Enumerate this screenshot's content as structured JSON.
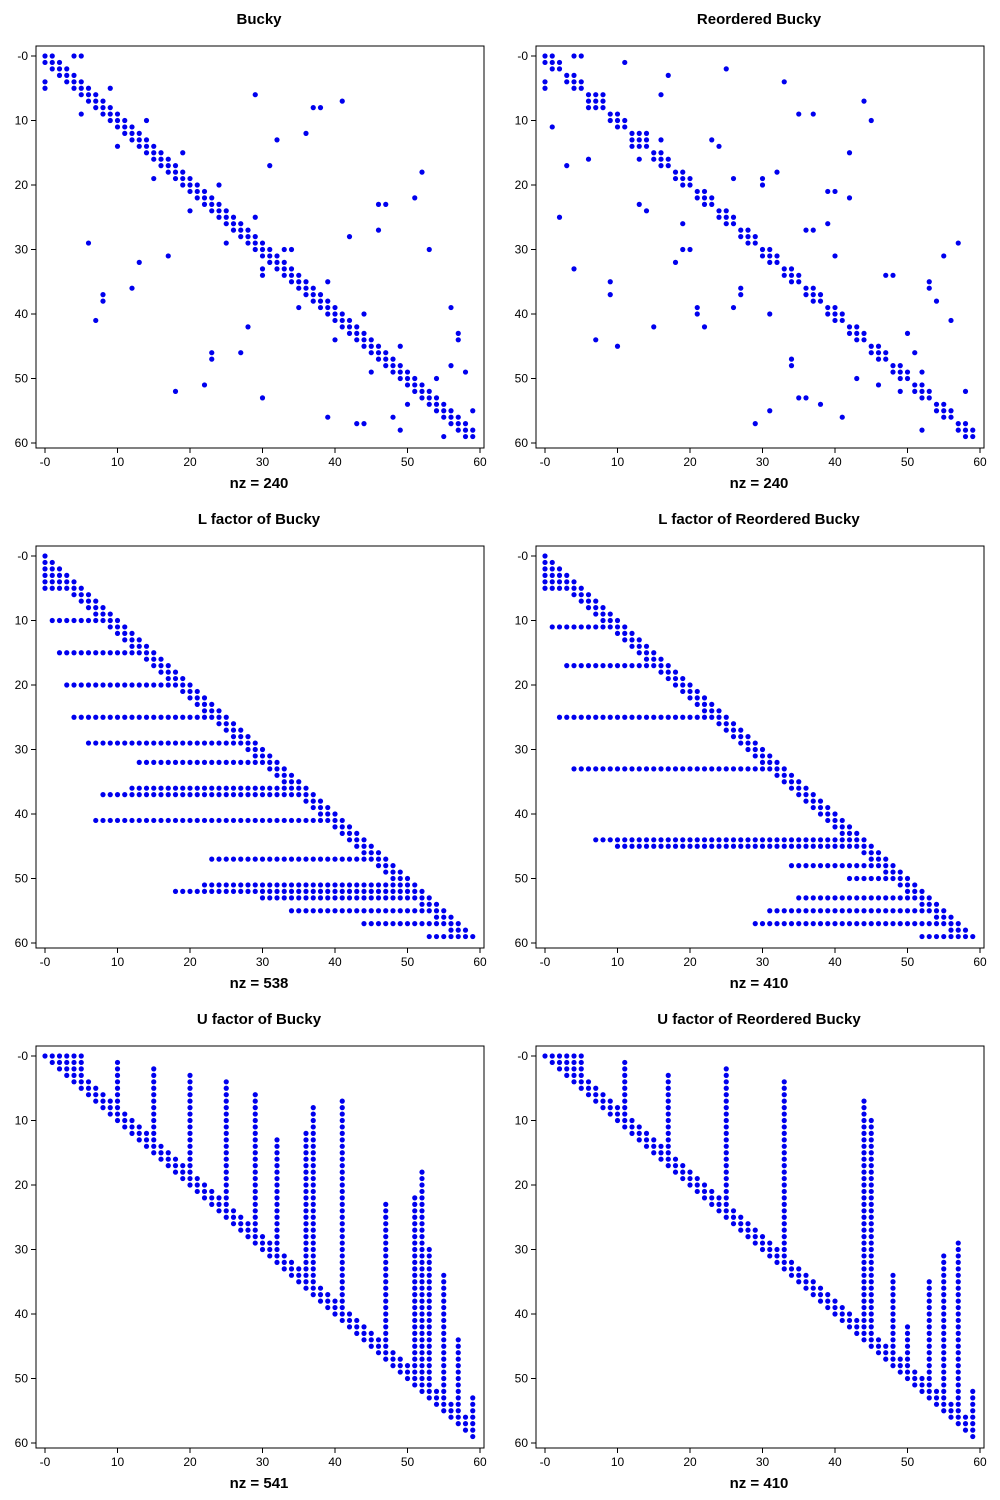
{
  "colors": {
    "marker": "#0000ee",
    "axes": "#000000",
    "background": "#ffffff"
  },
  "chart_data": [
    {
      "type": "scatter",
      "title": "Bucky",
      "xlabel": "nz = 240",
      "xlim": [
        0,
        59
      ],
      "ylim": [
        0,
        59
      ],
      "y_reversed": true,
      "xticks": [
        "-0",
        "10",
        "20",
        "30",
        "40",
        "50",
        "60"
      ],
      "yticks": [
        "-0",
        "10",
        "20",
        "30",
        "40",
        "50",
        "60"
      ],
      "pattern": "banded_symmetric",
      "note_counts": {
        "nnz": 240
      }
    },
    {
      "type": "scatter",
      "title": "Reordered Bucky",
      "xlabel": "nz = 240",
      "xlim": [
        0,
        59
      ],
      "ylim": [
        0,
        59
      ],
      "y_reversed": true,
      "xticks": [
        "-0",
        "10",
        "20",
        "30",
        "40",
        "50",
        "60"
      ],
      "yticks": [
        "-0",
        "10",
        "20",
        "30",
        "40",
        "50",
        "60"
      ],
      "pattern": "reordered_symmetric"
    },
    {
      "type": "scatter",
      "title": "L factor of Bucky",
      "xlabel": "nz = 538",
      "xlim": [
        0,
        59
      ],
      "ylim": [
        0,
        59
      ],
      "y_reversed": true,
      "xticks": [
        "-0",
        "10",
        "20",
        "30",
        "40",
        "50",
        "60"
      ],
      "yticks": [
        "-0",
        "10",
        "20",
        "30",
        "40",
        "50",
        "60"
      ],
      "pattern": "lower_rows",
      "row_starts": [
        [
          0,
          0
        ],
        [
          1,
          0
        ],
        [
          2,
          0
        ],
        [
          3,
          0
        ],
        [
          4,
          0
        ],
        [
          5,
          0
        ],
        [
          10,
          1
        ],
        [
          15,
          2
        ],
        [
          20,
          3
        ],
        [
          25,
          4
        ],
        [
          29,
          6
        ],
        [
          32,
          13
        ],
        [
          36,
          12
        ],
        [
          37,
          8
        ],
        [
          41,
          7
        ],
        [
          47,
          23
        ],
        [
          51,
          22
        ],
        [
          52,
          18
        ],
        [
          53,
          30
        ],
        [
          55,
          34
        ],
        [
          57,
          44
        ],
        [
          59,
          53
        ]
      ]
    },
    {
      "type": "scatter",
      "title": "L factor of Reordered Bucky",
      "xlabel": "nz = 410",
      "xlim": [
        0,
        59
      ],
      "ylim": [
        0,
        59
      ],
      "y_reversed": true,
      "xticks": [
        "-0",
        "10",
        "20",
        "30",
        "40",
        "50",
        "60"
      ],
      "yticks": [
        "-0",
        "10",
        "20",
        "30",
        "40",
        "50",
        "60"
      ],
      "pattern": "lower_rows",
      "row_starts": [
        [
          0,
          0
        ],
        [
          1,
          0
        ],
        [
          2,
          0
        ],
        [
          3,
          0
        ],
        [
          4,
          0
        ],
        [
          5,
          0
        ],
        [
          11,
          1
        ],
        [
          17,
          3
        ],
        [
          25,
          2
        ],
        [
          33,
          4
        ],
        [
          44,
          7
        ],
        [
          45,
          10
        ],
        [
          48,
          34
        ],
        [
          50,
          42
        ],
        [
          53,
          35
        ],
        [
          55,
          31
        ],
        [
          57,
          29
        ],
        [
          59,
          52
        ]
      ]
    },
    {
      "type": "scatter",
      "title": "U factor of Bucky",
      "xlabel": "nz = 541",
      "xlim": [
        0,
        59
      ],
      "ylim": [
        0,
        59
      ],
      "y_reversed": true,
      "xticks": [
        "-0",
        "10",
        "20",
        "30",
        "40",
        "50",
        "60"
      ],
      "yticks": [
        "-0",
        "10",
        "20",
        "30",
        "40",
        "50",
        "60"
      ],
      "pattern": "upper_cols",
      "col_starts": [
        [
          0,
          0
        ],
        [
          1,
          0
        ],
        [
          2,
          0
        ],
        [
          3,
          0
        ],
        [
          4,
          0
        ],
        [
          5,
          0
        ],
        [
          10,
          1
        ],
        [
          15,
          2
        ],
        [
          20,
          3
        ],
        [
          25,
          4
        ],
        [
          29,
          6
        ],
        [
          32,
          13
        ],
        [
          36,
          12
        ],
        [
          37,
          8
        ],
        [
          41,
          7
        ],
        [
          47,
          23
        ],
        [
          51,
          22
        ],
        [
          52,
          18
        ],
        [
          53,
          30
        ],
        [
          55,
          34
        ],
        [
          57,
          44
        ],
        [
          59,
          53
        ]
      ]
    },
    {
      "type": "scatter",
      "title": "U factor of Reordered Bucky",
      "xlabel": "nz = 410",
      "xlim": [
        0,
        59
      ],
      "ylim": [
        0,
        59
      ],
      "y_reversed": true,
      "xticks": [
        "-0",
        "10",
        "20",
        "30",
        "40",
        "50",
        "60"
      ],
      "yticks": [
        "-0",
        "10",
        "20",
        "30",
        "40",
        "50",
        "60"
      ],
      "pattern": "upper_cols",
      "col_starts": [
        [
          0,
          0
        ],
        [
          1,
          0
        ],
        [
          2,
          0
        ],
        [
          3,
          0
        ],
        [
          4,
          0
        ],
        [
          5,
          0
        ],
        [
          11,
          1
        ],
        [
          17,
          3
        ],
        [
          25,
          2
        ],
        [
          33,
          4
        ],
        [
          44,
          7
        ],
        [
          45,
          10
        ],
        [
          48,
          34
        ],
        [
          50,
          42
        ],
        [
          53,
          35
        ],
        [
          55,
          31
        ],
        [
          57,
          29
        ],
        [
          59,
          52
        ]
      ]
    }
  ]
}
